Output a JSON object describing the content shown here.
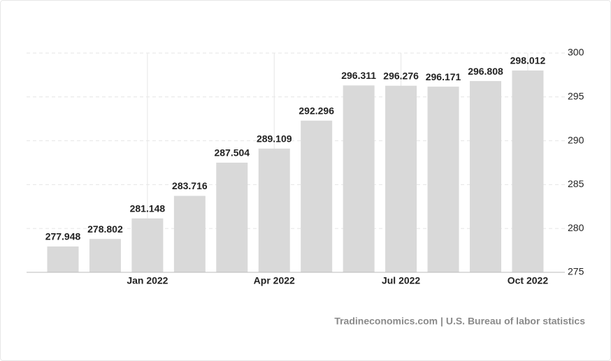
{
  "chart_data": {
    "type": "bar",
    "categories": [
      null,
      null,
      "Jan 2022",
      null,
      null,
      "Apr 2022",
      null,
      null,
      "Jul 2022",
      null,
      null,
      "Oct 2022"
    ],
    "values": [
      277.948,
      278.802,
      281.148,
      283.716,
      287.504,
      289.109,
      292.296,
      296.311,
      296.276,
      296.171,
      296.808,
      298.012
    ],
    "color": "#d9d9d9",
    "ylim": [
      275,
      300
    ],
    "yticks": [
      275,
      280,
      285,
      290,
      295,
      300
    ],
    "grid": true,
    "source": "Tradineconomics.com | U.S. Bureau of labor statistics"
  }
}
